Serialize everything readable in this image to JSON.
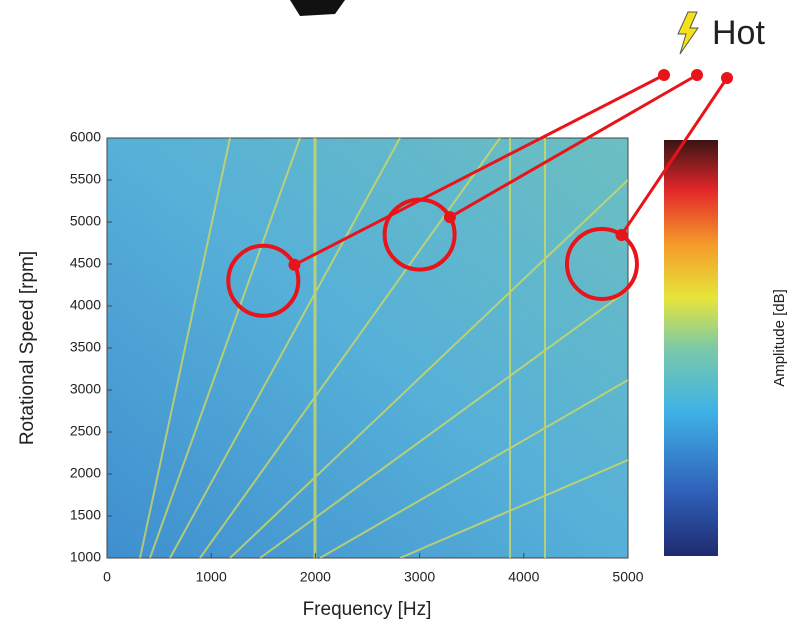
{
  "chart_data": {
    "type": "heatmap",
    "xlabel": "Frequency [Hz]",
    "ylabel": "Rotational Speed [rpm]",
    "colorbar_label": "Amplitude [dB]",
    "xlim": [
      0,
      5000
    ],
    "xticks": [
      0,
      1000,
      2000,
      3000,
      4000,
      5000
    ],
    "ylim": [
      1000,
      6000
    ],
    "yticks": [
      1000,
      1500,
      2000,
      2500,
      3000,
      3500,
      4000,
      4500,
      5000,
      5500,
      6000
    ],
    "annotation": "Hot",
    "highlights": {
      "color": "#e8141a",
      "x": [
        1500,
        3000,
        4750
      ],
      "y": [
        4300,
        4850,
        4500
      ]
    }
  }
}
